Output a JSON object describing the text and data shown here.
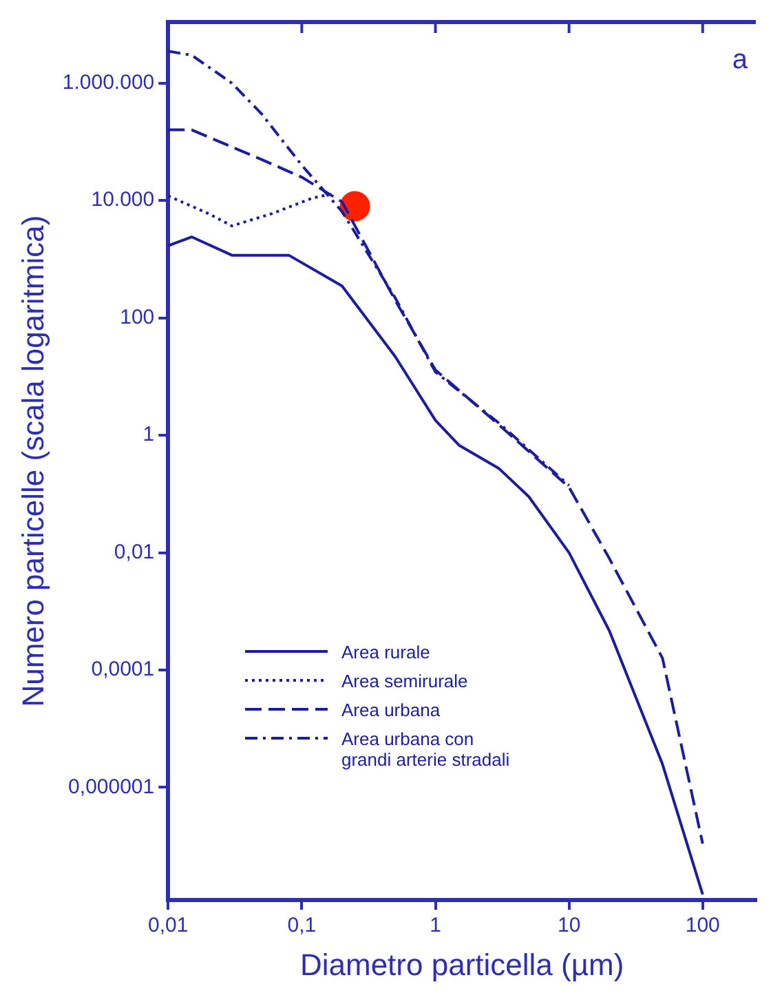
{
  "chart_data": {
    "type": "line",
    "xlabel": "Diametro particella (µm)",
    "ylabel": "Numero particelle (scala logaritmica)",
    "log": "xy",
    "xlim": [
      0.01,
      250
    ],
    "ylim": [
      1.2e-08,
      11000000.0
    ],
    "xticks": [
      {
        "value": 0.01,
        "label": "0,01"
      },
      {
        "value": 0.1,
        "label": "0,1"
      },
      1,
      10,
      100
    ],
    "yticks": [
      {
        "value": 1000000,
        "label": "1.000.000"
      },
      {
        "value": 10000,
        "label": "10.000"
      },
      100,
      1,
      {
        "value": 0.01,
        "label": "0,01"
      },
      {
        "value": 0.0001,
        "label": "0,0001"
      },
      {
        "value": 1e-06,
        "label": "0,000001"
      }
    ],
    "grid": false,
    "legend": "bottom left",
    "marker": "none",
    "annotations": [
      "a"
    ],
    "series": [
      {
        "name": "Area rurale",
        "color": "#1c1ca0",
        "line_style": "solid",
        "x": [
          0.01,
          0.015,
          0.03,
          0.08,
          0.2,
          0.5,
          1,
          1.5,
          3,
          5,
          10,
          20,
          50,
          100
        ],
        "values": [
          1700,
          2400,
          1170,
          1170,
          350,
          22,
          1.8,
          0.68,
          0.27,
          0.09,
          0.01,
          0.00047,
          2.5e-06,
          1.5e-08
        ]
      },
      {
        "name": "Area semirurale",
        "color": "#1c1ca0",
        "line_style": "dotted",
        "x": [
          0.01,
          0.02,
          0.03,
          0.06,
          0.12,
          0.17
        ],
        "values": [
          12000,
          6000,
          3700,
          6000,
          11000,
          13000
        ]
      },
      {
        "name": "Area urbana",
        "color": "#1c1ca0",
        "line_style": "dashed",
        "x": [
          0.01,
          0.015,
          0.05,
          0.1,
          0.2,
          0.5,
          1,
          3,
          10,
          20,
          50,
          100
        ],
        "values": [
          160000,
          160000,
          50000,
          25000,
          9500,
          200,
          13,
          1.5,
          0.13,
          0.008,
          0.00016,
          1.1e-07
        ]
      },
      {
        "name": "Area urbana con grandi arterie stradali",
        "color": "#1c1ca0",
        "line_style": "dashdot",
        "x": [
          0.01,
          0.015,
          0.03,
          0.05,
          0.1,
          0.2,
          0.5,
          1,
          3,
          10
        ],
        "values": [
          3500000,
          3000000,
          1000000,
          300000,
          40000,
          6500,
          220,
          12,
          1.6,
          0.14
        ]
      },
      {
        "type": "scatter",
        "color": "#ff2200",
        "marker": "circle",
        "x": [
          0.25
        ],
        "values": [
          8000
        ]
      }
    ]
  }
}
